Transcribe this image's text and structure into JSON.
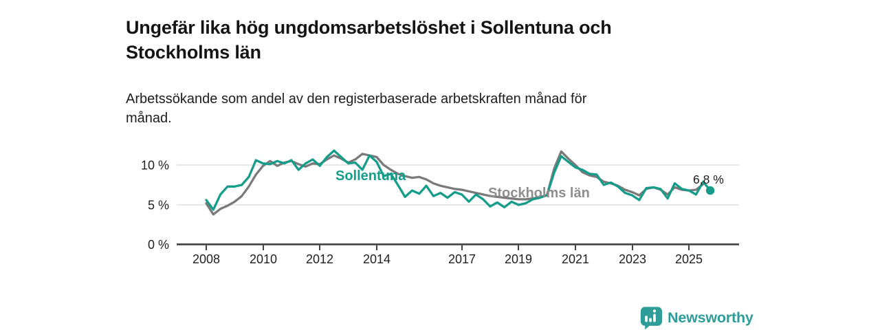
{
  "header": {
    "title": "Ungefär lika hög ungdomsarbetslöshet i Sollentuna och Stockholms län",
    "subtitle": "Arbetssökande som andel av den registerbaserade arbetskraften månad för månad."
  },
  "branding": {
    "logo_text": "Newsworthy",
    "logo_icon": "bar-chart-speech-bubble-icon",
    "logo_color": "#2e9d99"
  },
  "colors": {
    "sollentuna": "#169c8b",
    "stockholms_lan": "#7a7a7a",
    "stockholms_label": "#8e8e8e",
    "grid": "#dbdbdb",
    "axis": "#404040",
    "text": "#1f1f1f"
  },
  "chart_data": {
    "type": "line",
    "title": "Ungefär lika hög ungdomsarbetslöshet i Sollentuna och Stockholms län",
    "subtitle": "Arbetssökande som andel av den registerbaserade arbetskraften månad för månad.",
    "unit": "%",
    "frequency": "quarter-sampled monthly series",
    "x_start": 2008,
    "x_step_years": 0.25,
    "xlim": [
      2007.9,
      2026.3
    ],
    "ylim": [
      0,
      12.5
    ],
    "grid": true,
    "legend": "inline-labels",
    "x_tick_labels": [
      "2008",
      "2010",
      "2012",
      "2014",
      "2017",
      "2019",
      "2021",
      "2023",
      "2025"
    ],
    "x_tick_years": [
      2008,
      2010,
      2012,
      2014,
      2017,
      2019,
      2021,
      2023,
      2025
    ],
    "y_tick_labels": [
      "0 %",
      "5 %",
      "10 %"
    ],
    "y_tick_values": [
      0,
      5,
      10
    ],
    "annotation": {
      "text": "6,8 %",
      "series": "Sollentuna",
      "value": 6.8
    },
    "series": [
      {
        "name": "Stockholms län",
        "color": "#7a7a7a",
        "end_dot": false,
        "values": [
          5.2,
          3.8,
          4.5,
          4.9,
          5.4,
          6.1,
          7.3,
          8.8,
          9.9,
          10.5,
          9.9,
          10.3,
          10.5,
          10.1,
          9.8,
          10.2,
          10.1,
          10.7,
          11.2,
          10.8,
          10.3,
          10.7,
          11.4,
          11.2,
          11.0,
          10.0,
          9.4,
          8.9,
          8.6,
          8.4,
          8.5,
          8.2,
          7.7,
          7.4,
          7.2,
          7.0,
          6.9,
          6.7,
          6.5,
          6.3,
          6.1,
          6.0,
          5.9,
          5.8,
          5.7,
          5.7,
          5.8,
          6.0,
          6.2,
          9.5,
          11.7,
          10.8,
          10.0,
          9.1,
          8.7,
          8.5,
          7.9,
          7.7,
          7.4,
          6.9,
          6.6,
          6.2,
          7.0,
          7.2,
          6.9,
          6.3,
          7.2,
          6.9,
          6.8,
          6.9,
          7.6
        ]
      },
      {
        "name": "Sollentuna",
        "color": "#169c8b",
        "end_dot": true,
        "values": [
          5.6,
          4.4,
          6.3,
          7.3,
          7.3,
          7.5,
          8.5,
          10.6,
          10.2,
          10.1,
          10.5,
          10.2,
          10.6,
          9.4,
          10.2,
          10.7,
          9.9,
          11.0,
          11.8,
          11.0,
          10.2,
          10.3,
          9.4,
          11.2,
          10.4,
          8.6,
          8.9,
          7.5,
          6.0,
          6.8,
          6.4,
          7.4,
          6.1,
          6.5,
          5.9,
          6.6,
          6.3,
          5.4,
          6.3,
          5.7,
          4.8,
          5.3,
          4.7,
          5.4,
          5.0,
          5.2,
          5.7,
          5.9,
          6.2,
          9.0,
          11.1,
          10.4,
          9.7,
          9.4,
          8.9,
          8.8,
          7.5,
          7.8,
          7.3,
          6.5,
          6.2,
          5.6,
          7.1,
          7.2,
          7.0,
          5.8,
          7.7,
          7.0,
          6.8,
          6.3,
          7.9,
          6.8
        ]
      }
    ]
  }
}
